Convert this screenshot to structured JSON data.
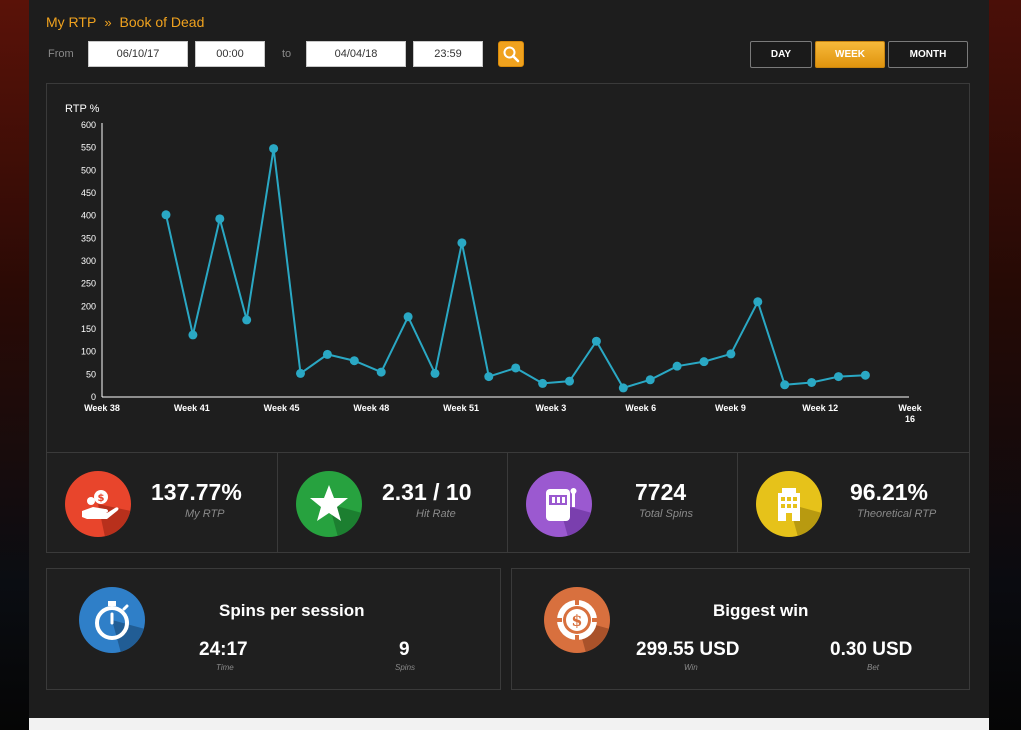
{
  "breadcrumb": {
    "root": "My RTP",
    "separator": "»",
    "current": "Book of Dead"
  },
  "filters": {
    "from_label": "From",
    "from_date": "06/10/17",
    "from_time": "00:00",
    "to_label": "to",
    "to_date": "04/04/18",
    "to_time": "23:59",
    "search_icon": "search-icon"
  },
  "period_toggle": {
    "day": "DAY",
    "week": "WEEK",
    "month": "MONTH",
    "selected": "WEEK"
  },
  "chart_data": {
    "type": "line",
    "ylabel": "RTP %",
    "ylim": [
      0,
      600
    ],
    "yticks": [
      0,
      50,
      100,
      150,
      200,
      250,
      300,
      350,
      400,
      450,
      500,
      550,
      600
    ],
    "xticks": [
      "Week 38",
      "Week 41",
      "Week 45",
      "Week 48",
      "Week 51",
      "Week 3",
      "Week 6",
      "Week 9",
      "Week 12",
      "Week 16"
    ],
    "grid": false,
    "line_color": "#2aa8c4",
    "series": [
      {
        "values": [
          402,
          137,
          393,
          170,
          548,
          52,
          94,
          80,
          55,
          177,
          52,
          340,
          45,
          64,
          30,
          35,
          123,
          20,
          38,
          68,
          78,
          95,
          210,
          27,
          32,
          45,
          48
        ]
      }
    ]
  },
  "stats": [
    {
      "value": "137.77%",
      "label": "My RTP",
      "icon": "hand-money-icon",
      "color": "#e8452c"
    },
    {
      "value": "2.31 / 10",
      "label": "Hit Rate",
      "icon": "star-icon",
      "color": "#27a23f"
    },
    {
      "value": "7724",
      "label": "Total Spins",
      "icon": "slot-machine-icon",
      "color": "#9b59d0"
    },
    {
      "value": "96.21%",
      "label": "Theoretical RTP",
      "icon": "casino-building-icon",
      "color": "#e6c21a"
    }
  ],
  "spins_card": {
    "title": "Spins per session",
    "icon": "stopwatch-icon",
    "time_value": "24:17",
    "time_label": "Time",
    "spins_value": "9",
    "spins_label": "Spins"
  },
  "win_card": {
    "title": "Biggest win",
    "icon": "casino-chip-icon",
    "win_value": "299.55 USD",
    "win_label": "Win",
    "bet_value": "0.30 USD",
    "bet_label": "Bet"
  }
}
